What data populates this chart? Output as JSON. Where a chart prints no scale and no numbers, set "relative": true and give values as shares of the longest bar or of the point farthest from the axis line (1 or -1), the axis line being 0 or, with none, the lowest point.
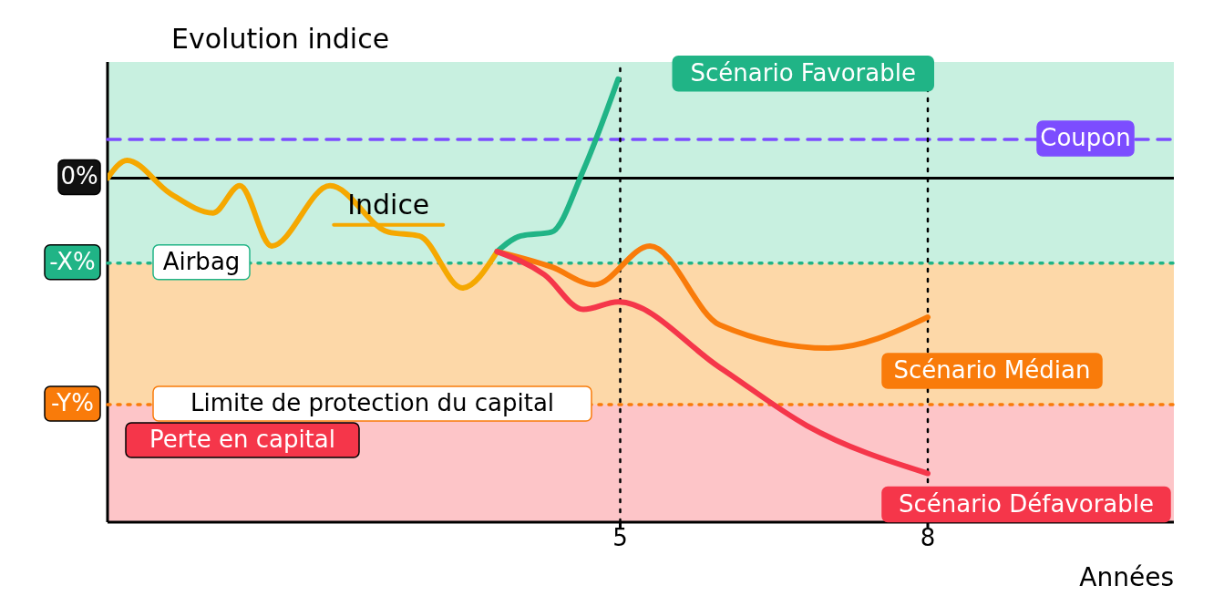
{
  "chart_data": {
    "type": "line",
    "relative": true,
    "ylabel": "Evolution indice",
    "xlabel": "Années",
    "xlim": [
      0,
      10.4
    ],
    "xticks": [
      5,
      8
    ],
    "line_style": "solid",
    "series": [
      {
        "name": "Indice",
        "color": "#f5a800",
        "x": [
          0,
          0.19,
          0.61,
          1.03,
          1.29,
          1.6,
          2.17,
          2.74,
          3.04,
          3.46,
          3.8
        ],
        "values": [
          0,
          0.06,
          -0.052,
          -0.118,
          -0.026,
          -0.23,
          -0.026,
          -0.183,
          -0.196,
          -0.372,
          -0.249
        ]
      },
      {
        "name": "Scénario Favorable",
        "color": "#20b486",
        "x": [
          3.8,
          4.03,
          4.33,
          4.64,
          4.98
        ],
        "values": [
          -0.249,
          -0.196,
          -0.183,
          0.026,
          0.335
        ]
      },
      {
        "name": "Scénario Médian",
        "color": "#f97b0a",
        "x": [
          3.8,
          4.33,
          4.75,
          5.29,
          5.97,
          7.03,
          8
        ],
        "values": [
          -0.249,
          -0.301,
          -0.361,
          -0.23,
          -0.497,
          -0.576,
          -0.471
        ]
      },
      {
        "name": "Scénario Défavorable",
        "color": "#f5364a",
        "x": [
          3.8,
          4.26,
          4.64,
          4.98,
          5.97,
          6.82,
          8
        ],
        "values": [
          -0.249,
          -0.327,
          -0.445,
          -0.419,
          -0.641,
          -0.838,
          -1
        ]
      }
    ],
    "ref_lines": [
      {
        "axis": "y",
        "value": 0.131,
        "label": "Coupon",
        "color": "#7c4dff",
        "line_style": "dashed"
      },
      {
        "axis": "y",
        "value": -0.288,
        "label": "Airbag",
        "color": "#20b486",
        "line_style": "dotted"
      },
      {
        "axis": "y",
        "value": -0.767,
        "label": "Limite de protection du capital",
        "color": "#f97b0a",
        "line_style": "dotted"
      },
      {
        "axis": "x",
        "value": 5,
        "color": "#000000",
        "line_style": "dotted"
      },
      {
        "axis": "x",
        "value": 8,
        "color": "#000000",
        "line_style": "dotted"
      }
    ],
    "grid": false,
    "bands": [
      {
        "axis": "y",
        "from": -0.288,
        "to": 0.393,
        "color": "#c8f0e0"
      },
      {
        "axis": "y",
        "from": -0.767,
        "to": -0.288,
        "color": "#fdd8a8"
      },
      {
        "axis": "y",
        "from": -1.165,
        "to": -0.767,
        "label": "Perte en capital",
        "color": "#fdc5c8"
      }
    ],
    "annotations": [
      "0%",
      "-X%",
      "-Y%"
    ]
  }
}
